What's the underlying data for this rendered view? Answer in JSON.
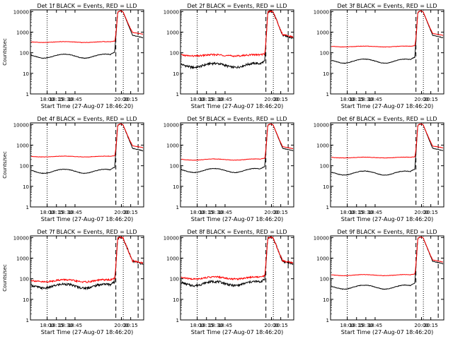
{
  "chart_data": {
    "type": "line",
    "grid": false,
    "legend": "none",
    "xlabel": "Start Time (27-Aug-07 18:46:20)",
    "ylabel": "Counts/sec",
    "y_scale": "log",
    "ylim": [
      1,
      12000
    ],
    "y_ticks": [
      1,
      10,
      100,
      1000,
      10000
    ],
    "x_range_hours": [
      17.55,
      20.6
    ],
    "x_ticks": [
      {
        "label": "18:00",
        "h": 18.0
      },
      {
        "label": "18:15",
        "h": 18.25
      },
      {
        "label": "18:30",
        "h": 18.5
      },
      {
        "label": "18:45",
        "h": 18.75
      },
      {
        "label": "20:00",
        "h": 20.0
      },
      {
        "label": "20:15",
        "h": 20.25
      }
    ],
    "colors": {
      "events": "#000000",
      "lld": "#ff0000"
    },
    "panels": [
      {
        "title": "Det 1f BLACK = Events, RED = LLD",
        "ylabel": "Counts/sec",
        "black_base": 70,
        "red_base": 330,
        "red_offset": 260
      },
      {
        "title": "Det 2f BLACK = Events, RED = LLD",
        "ylabel": "",
        "black_base": 25,
        "red_base": 75,
        "red_offset": 50
      },
      {
        "title": "Det 3f BLACK = Events, RED = LLD",
        "ylabel": "",
        "black_base": 40,
        "red_base": 200,
        "red_offset": 160
      },
      {
        "title": "Det 4f BLACK = Events, RED = LLD",
        "ylabel": "Counts/sec",
        "black_base": 55,
        "red_base": 280,
        "red_offset": 225
      },
      {
        "title": "Det 5f BLACK = Events, RED = LLD",
        "ylabel": "",
        "black_base": 60,
        "red_base": 200,
        "red_offset": 140
      },
      {
        "title": "Det 6f BLACK = Events, RED = LLD",
        "ylabel": "",
        "black_base": 45,
        "red_base": 250,
        "red_offset": 205
      },
      {
        "title": "Det 7f BLACK = Events, RED = LLD",
        "ylabel": "Counts/sec",
        "black_base": 45,
        "red_base": 80,
        "red_offset": 35
      },
      {
        "title": "Det 8f BLACK = Events, RED = LLD",
        "ylabel": "",
        "black_base": 60,
        "red_base": 110,
        "red_offset": 50
      },
      {
        "title": "Det 9f BLACK = Events, RED = LLD",
        "ylabel": "",
        "black_base": 40,
        "red_base": 150,
        "red_offset": 110
      }
    ],
    "vlines": [
      {
        "h": 18.0,
        "style": "dotted"
      },
      {
        "h": 19.85,
        "style": "dashed"
      },
      {
        "h": 20.05,
        "style": "dotted"
      },
      {
        "h": 20.45,
        "style": "dashed"
      }
    ]
  }
}
